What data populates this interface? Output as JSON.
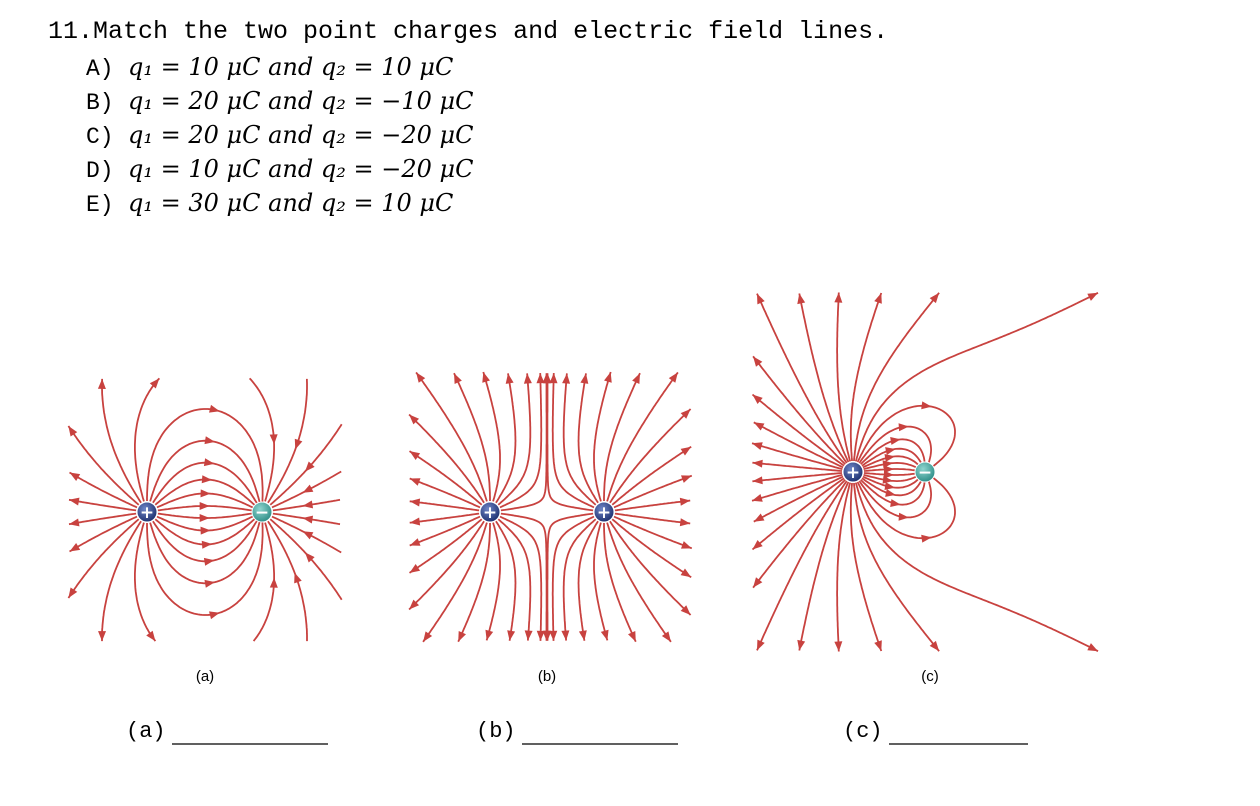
{
  "question": {
    "text": "11.Match the two point charges and electric field lines.",
    "options": [
      {
        "label": "A)",
        "text": "q₁ = 10 μC and q₂ = 10 μC"
      },
      {
        "label": "B)",
        "text": "q₁ = 20 μC and q₂ = −10 μC"
      },
      {
        "label": "C)",
        "text": "q₁ = 20 μC and q₂ = −20 μC"
      },
      {
        "label": "D)",
        "text": "q₁ = 10 μC and q₂ = −20 μC"
      },
      {
        "label": "E)",
        "text": "q₁ = 30 μC and q₂ = 10 μC"
      }
    ]
  },
  "figures": [
    {
      "caption": "(a)",
      "charges": [
        "+",
        "−"
      ]
    },
    {
      "caption": "(b)",
      "charges": [
        "+",
        "+"
      ]
    },
    {
      "caption": "(c)",
      "charges": [
        "+",
        "−"
      ]
    }
  ],
  "answers": [
    {
      "label": "(a)"
    },
    {
      "label": "(b)"
    },
    {
      "label": "(c)"
    }
  ]
}
